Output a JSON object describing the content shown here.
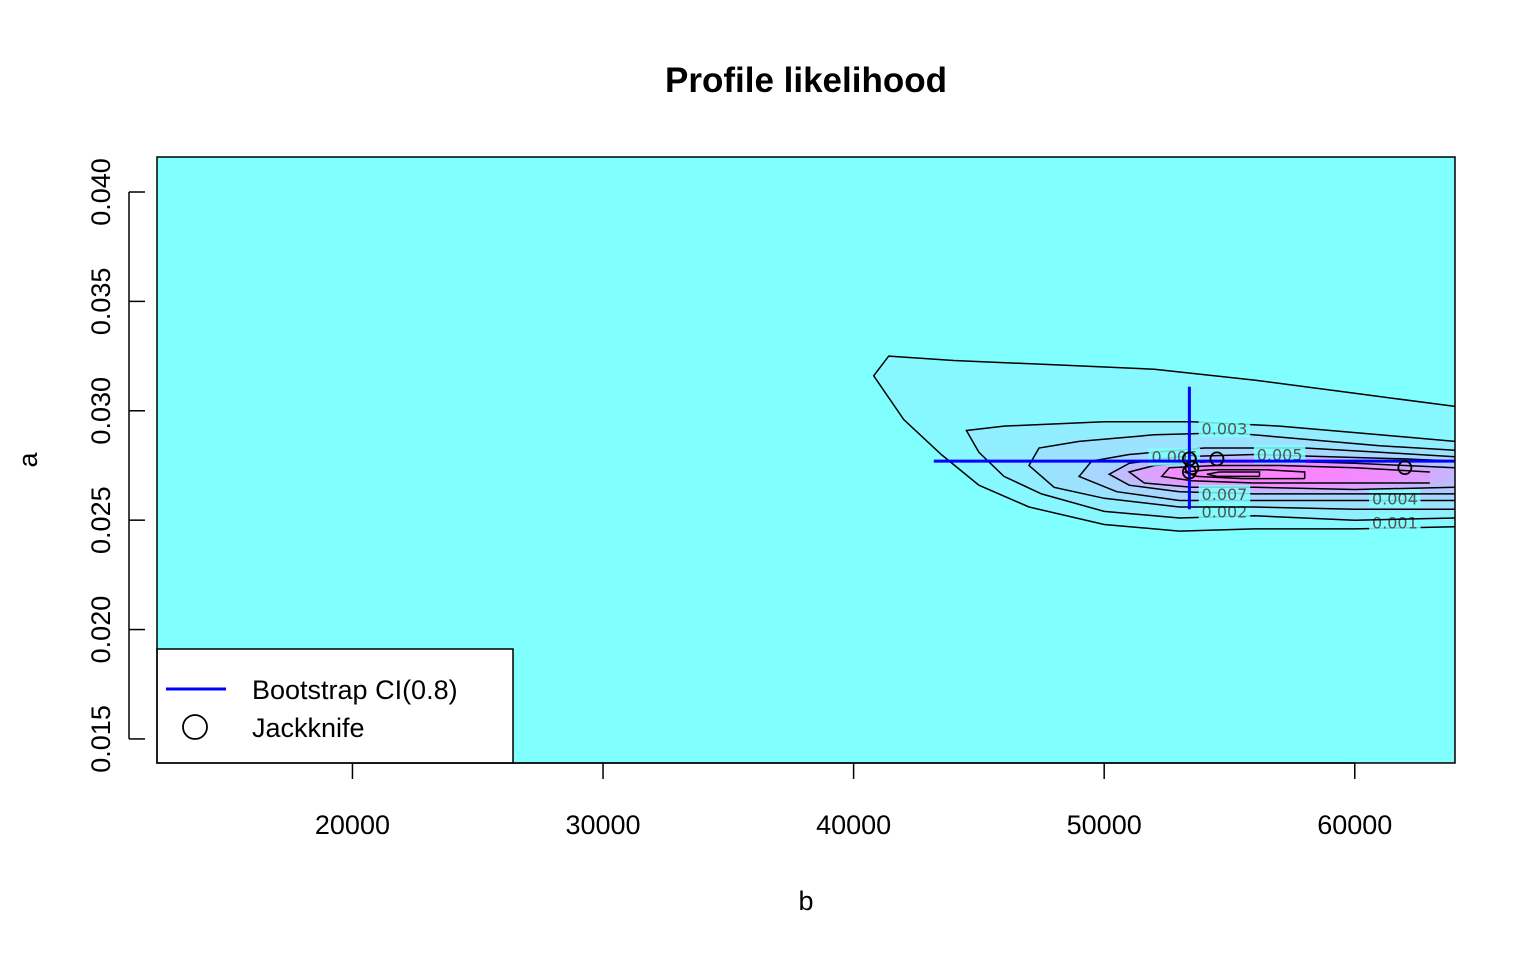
{
  "chart_data": {
    "type": "contour",
    "title": "Profile likelihood",
    "xlabel": "b",
    "ylabel": "a",
    "xlim": [
      12200,
      64000
    ],
    "ylim": [
      0.0139,
      0.0416
    ],
    "x_ticks": [
      20000,
      30000,
      40000,
      50000,
      60000
    ],
    "x_tick_labels": [
      "20000",
      "30000",
      "40000",
      "50000",
      "60000"
    ],
    "y_ticks": [
      0.015,
      0.02,
      0.025,
      0.03,
      0.035,
      0.04
    ],
    "y_tick_labels": [
      "0.015",
      "0.020",
      "0.025",
      "0.030",
      "0.035",
      "0.040"
    ],
    "colors": {
      "background_fill": "#80ffff",
      "peak_fill": "#ff80ff",
      "contour_line": "#000000",
      "ci_line": "#0000ff"
    },
    "contours": [
      {
        "level": 0.001,
        "label": "0.001",
        "label_at": [
          61600,
          0.0249
        ],
        "points": [
          [
            64000,
            0.0247
          ],
          [
            60000,
            0.0246
          ],
          [
            56000,
            0.0246
          ],
          [
            53000,
            0.0245
          ],
          [
            50000,
            0.0248
          ],
          [
            47000,
            0.0256
          ],
          [
            45000,
            0.0266
          ],
          [
            43500,
            0.028
          ],
          [
            42000,
            0.0296
          ],
          [
            40800,
            0.0316
          ],
          [
            41400,
            0.0325
          ],
          [
            44000,
            0.0323
          ],
          [
            48000,
            0.0321
          ],
          [
            52000,
            0.0319
          ],
          [
            56000,
            0.0314
          ],
          [
            60000,
            0.0308
          ],
          [
            64000,
            0.0302
          ]
        ]
      },
      {
        "level": 0.002,
        "label": "0.002",
        "label_at": [
          54800,
          0.0254
        ],
        "points": [
          [
            64000,
            0.0251
          ],
          [
            60000,
            0.025
          ],
          [
            56000,
            0.0252
          ],
          [
            53000,
            0.0251
          ],
          [
            50000,
            0.0254
          ],
          [
            47500,
            0.0262
          ],
          [
            46000,
            0.027
          ],
          [
            45000,
            0.0281
          ],
          [
            44500,
            0.0291
          ],
          [
            46000,
            0.0293
          ],
          [
            50000,
            0.0295
          ],
          [
            53500,
            0.0295
          ],
          [
            57000,
            0.0293
          ],
          [
            61000,
            0.0289
          ],
          [
            64000,
            0.0286
          ]
        ]
      },
      {
        "level": 0.003,
        "label": "0.003",
        "label_at": [
          54800,
          0.0292
        ],
        "points": [
          [
            64000,
            0.0255
          ],
          [
            60000,
            0.0255
          ],
          [
            56000,
            0.0256
          ],
          [
            53000,
            0.0256
          ],
          [
            50000,
            0.026
          ],
          [
            48000,
            0.0265
          ],
          [
            47000,
            0.0275
          ],
          [
            47400,
            0.0283
          ],
          [
            49000,
            0.0286
          ],
          [
            52000,
            0.0289
          ],
          [
            55000,
            0.029
          ],
          [
            58000,
            0.0287
          ],
          [
            61000,
            0.0284
          ],
          [
            64000,
            0.0282
          ]
        ]
      },
      {
        "level": 0.004,
        "label": "0.004",
        "label_at": [
          61600,
          0.026
        ],
        "points": [
          [
            64000,
            0.0259
          ],
          [
            60000,
            0.0259
          ],
          [
            56000,
            0.0259
          ],
          [
            53000,
            0.0259
          ],
          [
            50500,
            0.0263
          ],
          [
            49000,
            0.027
          ],
          [
            49500,
            0.0277
          ],
          [
            51000,
            0.028
          ],
          [
            54000,
            0.0283
          ],
          [
            58000,
            0.0283
          ],
          [
            61000,
            0.0281
          ],
          [
            64000,
            0.0279
          ]
        ]
      },
      {
        "level": 0.005,
        "label": "0.005",
        "label_at": [
          57000,
          0.028
        ],
        "points": [
          [
            64000,
            0.0262
          ],
          [
            60000,
            0.0262
          ],
          [
            56000,
            0.0262
          ],
          [
            53000,
            0.0263
          ],
          [
            51000,
            0.0266
          ],
          [
            50200,
            0.0271
          ],
          [
            51000,
            0.0276
          ],
          [
            53000,
            0.0279
          ],
          [
            56000,
            0.028
          ],
          [
            59000,
            0.0279
          ],
          [
            62000,
            0.0278
          ],
          [
            64000,
            0.0277
          ]
        ]
      },
      {
        "level": 0.006,
        "label": "0.006",
        "label_at": [
          52800,
          0.0279
        ],
        "points": [
          [
            64000,
            0.0265
          ],
          [
            60000,
            0.0264
          ],
          [
            56000,
            0.0265
          ],
          [
            53500,
            0.0265
          ],
          [
            51600,
            0.0267
          ],
          [
            51000,
            0.0272
          ],
          [
            52000,
            0.0275
          ],
          [
            54500,
            0.0277
          ],
          [
            57000,
            0.0277
          ],
          [
            60000,
            0.0276
          ],
          [
            64000,
            0.0274
          ]
        ]
      },
      {
        "level": 0.007,
        "label": "0.007",
        "label_at": [
          54800,
          0.0262
        ],
        "points": [
          [
            63000,
            0.0267
          ],
          [
            60000,
            0.0267
          ],
          [
            56000,
            0.0267
          ],
          [
            53500,
            0.0268
          ],
          [
            52300,
            0.027
          ],
          [
            52600,
            0.0274
          ],
          [
            54500,
            0.0275
          ],
          [
            57000,
            0.0275
          ],
          [
            60000,
            0.0274
          ],
          [
            63000,
            0.0272
          ]
        ]
      },
      {
        "level": 0.008,
        "label": "",
        "label_at": null,
        "points": [
          [
            58000,
            0.0269
          ],
          [
            55500,
            0.0269
          ],
          [
            53700,
            0.027
          ],
          [
            53200,
            0.0272
          ],
          [
            54200,
            0.0273
          ],
          [
            56500,
            0.0273
          ],
          [
            58000,
            0.0272
          ],
          [
            58000,
            0.0269
          ]
        ]
      },
      {
        "level": 0.009,
        "label": "",
        "label_at": null,
        "points": [
          [
            56200,
            0.027
          ],
          [
            54500,
            0.027
          ],
          [
            54100,
            0.0271
          ],
          [
            54600,
            0.0272
          ],
          [
            56200,
            0.0272
          ],
          [
            56200,
            0.027
          ]
        ]
      }
    ],
    "series": [
      {
        "name": "Bootstrap CI(0.8)",
        "type": "segments",
        "segments": [
          [
            [
              43200,
              0.0277
            ],
            [
              64000,
              0.0277
            ]
          ],
          [
            [
              53400,
              0.0255
            ],
            [
              53400,
              0.0311
            ]
          ]
        ]
      },
      {
        "name": "Jackknife",
        "type": "points",
        "points": [
          [
            53400,
            0.0278
          ],
          [
            53400,
            0.0272
          ],
          [
            53500,
            0.0274
          ],
          [
            54500,
            0.0278
          ],
          [
            62000,
            0.0274
          ]
        ]
      }
    ],
    "legend": {
      "position": "bottom-left",
      "items": [
        {
          "label": "Bootstrap CI(0.8)",
          "symbol": "line"
        },
        {
          "label": "Jackknife",
          "symbol": "circle"
        }
      ]
    }
  }
}
